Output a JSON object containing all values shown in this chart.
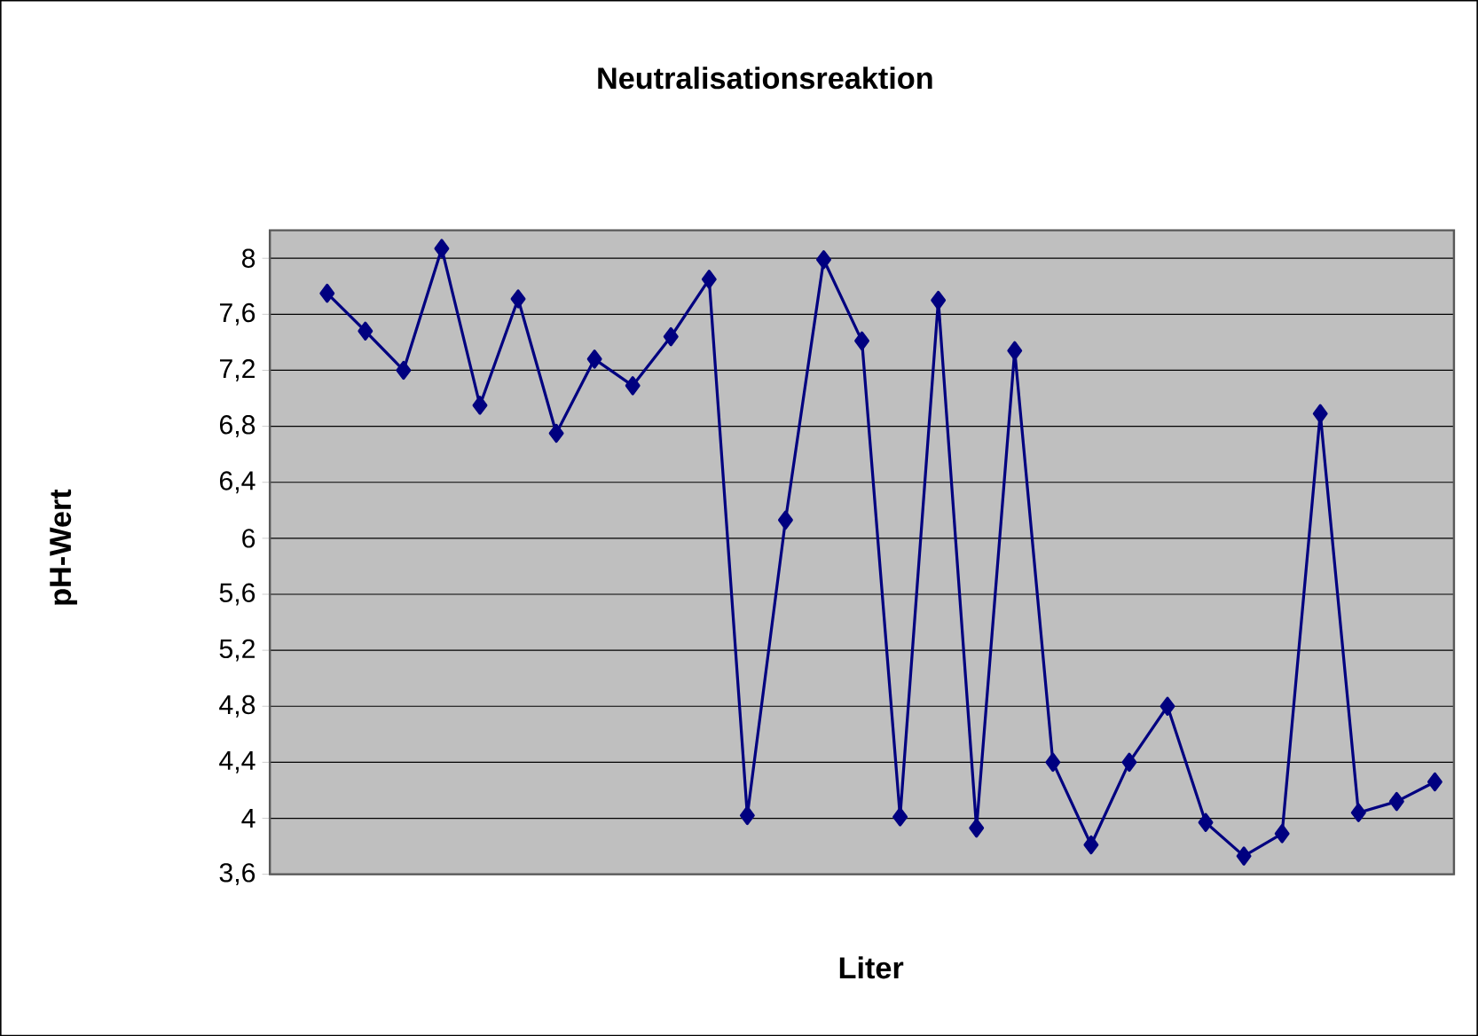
{
  "chart_data": {
    "type": "line",
    "title": "Neutralisationsreaktion",
    "xlabel": "Liter",
    "ylabel": "pH-Wert",
    "categories": [
      null,
      null,
      null,
      null,
      null,
      null,
      null,
      null,
      null,
      null,
      null,
      null,
      null,
      null,
      null,
      null,
      null,
      null,
      null,
      null,
      null,
      null,
      null,
      null,
      null,
      null,
      null,
      null,
      null,
      null,
      null
    ],
    "series": [
      {
        "color": "#000080",
        "values": [
          null,
          7.75,
          7.48,
          7.2,
          8.07,
          6.95,
          7.71,
          6.75,
          7.28,
          7.09,
          7.44,
          7.85,
          4.02,
          6.13,
          7.99,
          7.41,
          4.01,
          7.7,
          3.93,
          7.34,
          4.4,
          3.81,
          4.4,
          4.8,
          3.97,
          3.73,
          3.89,
          6.89,
          4.04,
          4.12,
          4.26
        ]
      }
    ],
    "ylim": [
      3.6,
      8.2
    ],
    "yticks": [
      {
        "value": 3.6,
        "label": "3,6"
      },
      {
        "value": 4,
        "label": "4"
      },
      {
        "value": 4.4,
        "label": "4,4"
      },
      {
        "value": 4.8,
        "label": "4,8"
      },
      {
        "value": 5.2,
        "label": "5,2"
      },
      {
        "value": 5.6,
        "label": "5,6"
      },
      {
        "value": 6,
        "label": "6"
      },
      {
        "value": 6.4,
        "label": "6,4"
      },
      {
        "value": 6.8,
        "label": "6,8"
      },
      {
        "value": 7.2,
        "label": "7,2"
      },
      {
        "value": 7.6,
        "label": "7,6"
      },
      {
        "value": 8,
        "label": "8"
      }
    ],
    "grid": "y",
    "marker": "diamond",
    "line_style": "solid"
  }
}
